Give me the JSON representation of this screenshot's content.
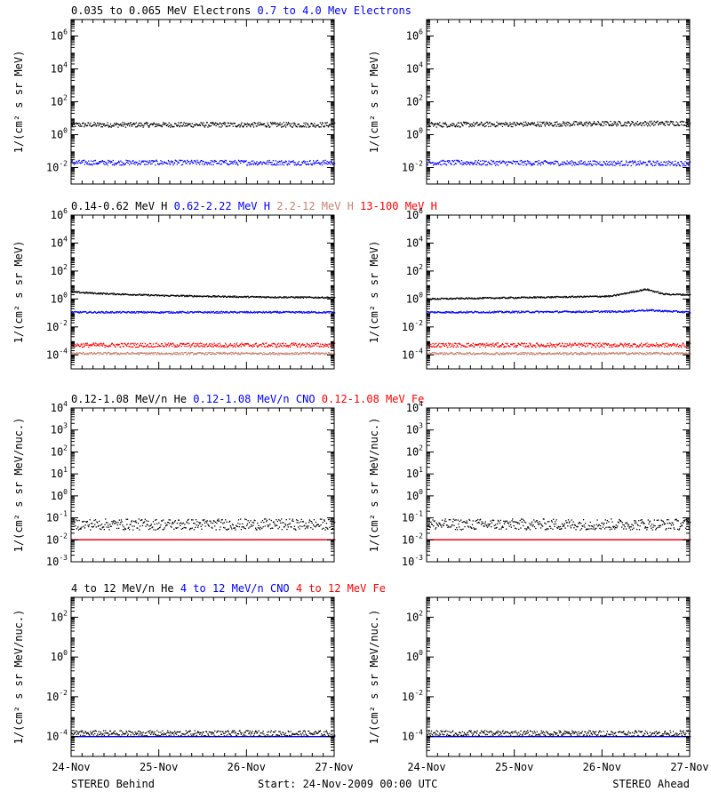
{
  "colors": {
    "black": "#000000",
    "blue": "#0000ff",
    "tan": "#c8826e",
    "red": "#ff0000"
  },
  "footer": {
    "left": "STEREO Behind",
    "center": "Start: 24-Nov-2009 00:00 UTC",
    "right": "STEREO Ahead"
  },
  "x_tick_labels": [
    "24-Nov",
    "25-Nov",
    "26-Nov",
    "27-Nov"
  ],
  "chart_data": [
    {
      "type": "scatter",
      "title": "0.035 to 0.065 MeV Electrons / 0.7 to 4.0 Mev Electrons",
      "legend": [
        {
          "text": "0.035 to 0.065 MeV Electrons",
          "color": "#000000"
        },
        {
          "text": "0.7 to 4.0 Mev Electrons",
          "color": "#0000ff"
        }
      ],
      "ylabel": "1/(cm² s sr MeV)",
      "y_scale": "log",
      "ylim_exp": [
        -3,
        7
      ],
      "y_tick_exps": [
        -2,
        0,
        2,
        4,
        6
      ],
      "xlim_days": [
        0,
        3
      ],
      "series": [
        {
          "color": "#000000",
          "behind": [
            [
              0,
              0.6
            ],
            [
              3,
              0.6
            ]
          ],
          "ahead": [
            [
              0,
              0.6
            ],
            [
              3,
              0.7
            ]
          ],
          "spread": 0.15
        },
        {
          "color": "#0000ff",
          "behind": [
            [
              0,
              -1.7
            ],
            [
              3,
              -1.7
            ]
          ],
          "ahead": [
            [
              0,
              -1.7
            ],
            [
              3,
              -1.75
            ]
          ],
          "spread": 0.15
        }
      ]
    },
    {
      "type": "scatter",
      "title": "0.14-0.62 MeV H / 0.62-2.22 MeV H / 2.2-12 MeV H / 13-100 MeV H",
      "legend": [
        {
          "text": "0.14-0.62 MeV H",
          "color": "#000000"
        },
        {
          "text": "0.62-2.22 MeV H",
          "color": "#0000ff"
        },
        {
          "text": "2.2-12 MeV H",
          "color": "#c8826e"
        },
        {
          "text": "13-100 MeV H",
          "color": "#ff0000"
        }
      ],
      "ylabel": "1/(cm² s sr MeV)",
      "y_scale": "log",
      "ylim_exp": [
        -5,
        6
      ],
      "y_tick_exps": [
        -4,
        -2,
        0,
        2,
        4,
        6
      ],
      "xlim_days": [
        0,
        3
      ],
      "series": [
        {
          "color": "#000000",
          "behind": [
            [
              0,
              0.5
            ],
            [
              0.3,
              0.4
            ],
            [
              1,
              0.25
            ],
            [
              2,
              0.15
            ],
            [
              3,
              0.1
            ]
          ],
          "ahead": [
            [
              0,
              0.0
            ],
            [
              1.6,
              0.15
            ],
            [
              2.1,
              0.2
            ],
            [
              2.3,
              0.45
            ],
            [
              2.5,
              0.7
            ],
            [
              2.7,
              0.35
            ],
            [
              3,
              0.3
            ]
          ],
          "spread": 0.05
        },
        {
          "color": "#0000ff",
          "behind": [
            [
              0,
              -0.95
            ],
            [
              3,
              -0.95
            ]
          ],
          "ahead": [
            [
              0,
              -0.95
            ],
            [
              2.2,
              -0.9
            ],
            [
              2.5,
              -0.8
            ],
            [
              3,
              -0.95
            ]
          ],
          "spread": 0.06
        },
        {
          "color": "#c8826e",
          "behind": [
            [
              0,
              -3.9
            ],
            [
              3,
              -3.9
            ]
          ],
          "ahead": [
            [
              0,
              -3.9
            ],
            [
              3,
              -3.9
            ]
          ],
          "spread": 0.08
        },
        {
          "color": "#ff0000",
          "behind": [
            [
              0,
              -3.3
            ],
            [
              3,
              -3.3
            ]
          ],
          "ahead": [
            [
              0,
              -3.3
            ],
            [
              3,
              -3.3
            ]
          ],
          "spread": 0.15
        }
      ]
    },
    {
      "type": "scatter",
      "title": "0.12-1.08 MeV/n He / 0.12-1.08 MeV/n CNO / 0.12-1.08 MeV Fe",
      "legend": [
        {
          "text": "0.12-1.08 MeV/n He",
          "color": "#000000"
        },
        {
          "text": "0.12-1.08 MeV/n CNO",
          "color": "#0000ff"
        },
        {
          "text": "0.12-1.08 MeV Fe",
          "color": "#ff0000"
        }
      ],
      "ylabel": "1/(cm² s sr MeV/nuc.)",
      "y_scale": "log",
      "ylim_exp": [
        -3,
        4
      ],
      "y_tick_exps": [
        -3,
        -2,
        -1,
        0,
        1,
        2,
        3,
        4
      ],
      "xlim_days": [
        0,
        3
      ],
      "series": [
        {
          "color": "#000000",
          "behind": [
            [
              0,
              -1.3
            ],
            [
              3,
              -1.3
            ]
          ],
          "ahead": [
            [
              0,
              -1.3
            ],
            [
              3,
              -1.3
            ]
          ],
          "spread": 0.25
        },
        {
          "color": "#0000ff",
          "behind": [
            [
              0,
              -2.0
            ],
            [
              3,
              -2.0
            ]
          ],
          "ahead": [
            [
              0,
              -2.0
            ],
            [
              3,
              -2.0
            ]
          ],
          "spread": 0.0
        },
        {
          "color": "#ff0000",
          "behind": [
            [
              0,
              -2.0
            ],
            [
              3,
              -2.0
            ]
          ],
          "ahead": [
            [
              0,
              -2.0
            ],
            [
              3,
              -2.0
            ]
          ],
          "spread": 0.0
        }
      ]
    },
    {
      "type": "scatter",
      "title": "4 to 12 MeV/n He / 4 to 12 MeV/n CNO / 4 to 12 MeV Fe",
      "legend": [
        {
          "text": "4 to 12 MeV/n He",
          "color": "#000000"
        },
        {
          "text": "4 to 12 MeV/n CNO",
          "color": "#0000ff"
        },
        {
          "text": "4 to 12 MeV Fe",
          "color": "#ff0000"
        }
      ],
      "ylabel": "1/(cm² s sr MeV/nuc.)",
      "y_scale": "log",
      "ylim_exp": [
        -5,
        3
      ],
      "y_tick_exps": [
        -4,
        -2,
        0,
        2
      ],
      "xlim_days": [
        0,
        3
      ],
      "series": [
        {
          "color": "#0000ff",
          "behind": [
            [
              0,
              -4
            ],
            [
              3,
              -4
            ]
          ],
          "ahead": [
            [
              0,
              -4
            ],
            [
              3,
              -4
            ]
          ],
          "spread": 0.0
        },
        {
          "color": "#000000",
          "behind": [
            [
              0,
              -3.85
            ],
            [
              3,
              -3.85
            ]
          ],
          "ahead": [
            [
              0,
              -3.85
            ],
            [
              3,
              -3.85
            ]
          ],
          "spread": 0.15
        }
      ]
    }
  ]
}
